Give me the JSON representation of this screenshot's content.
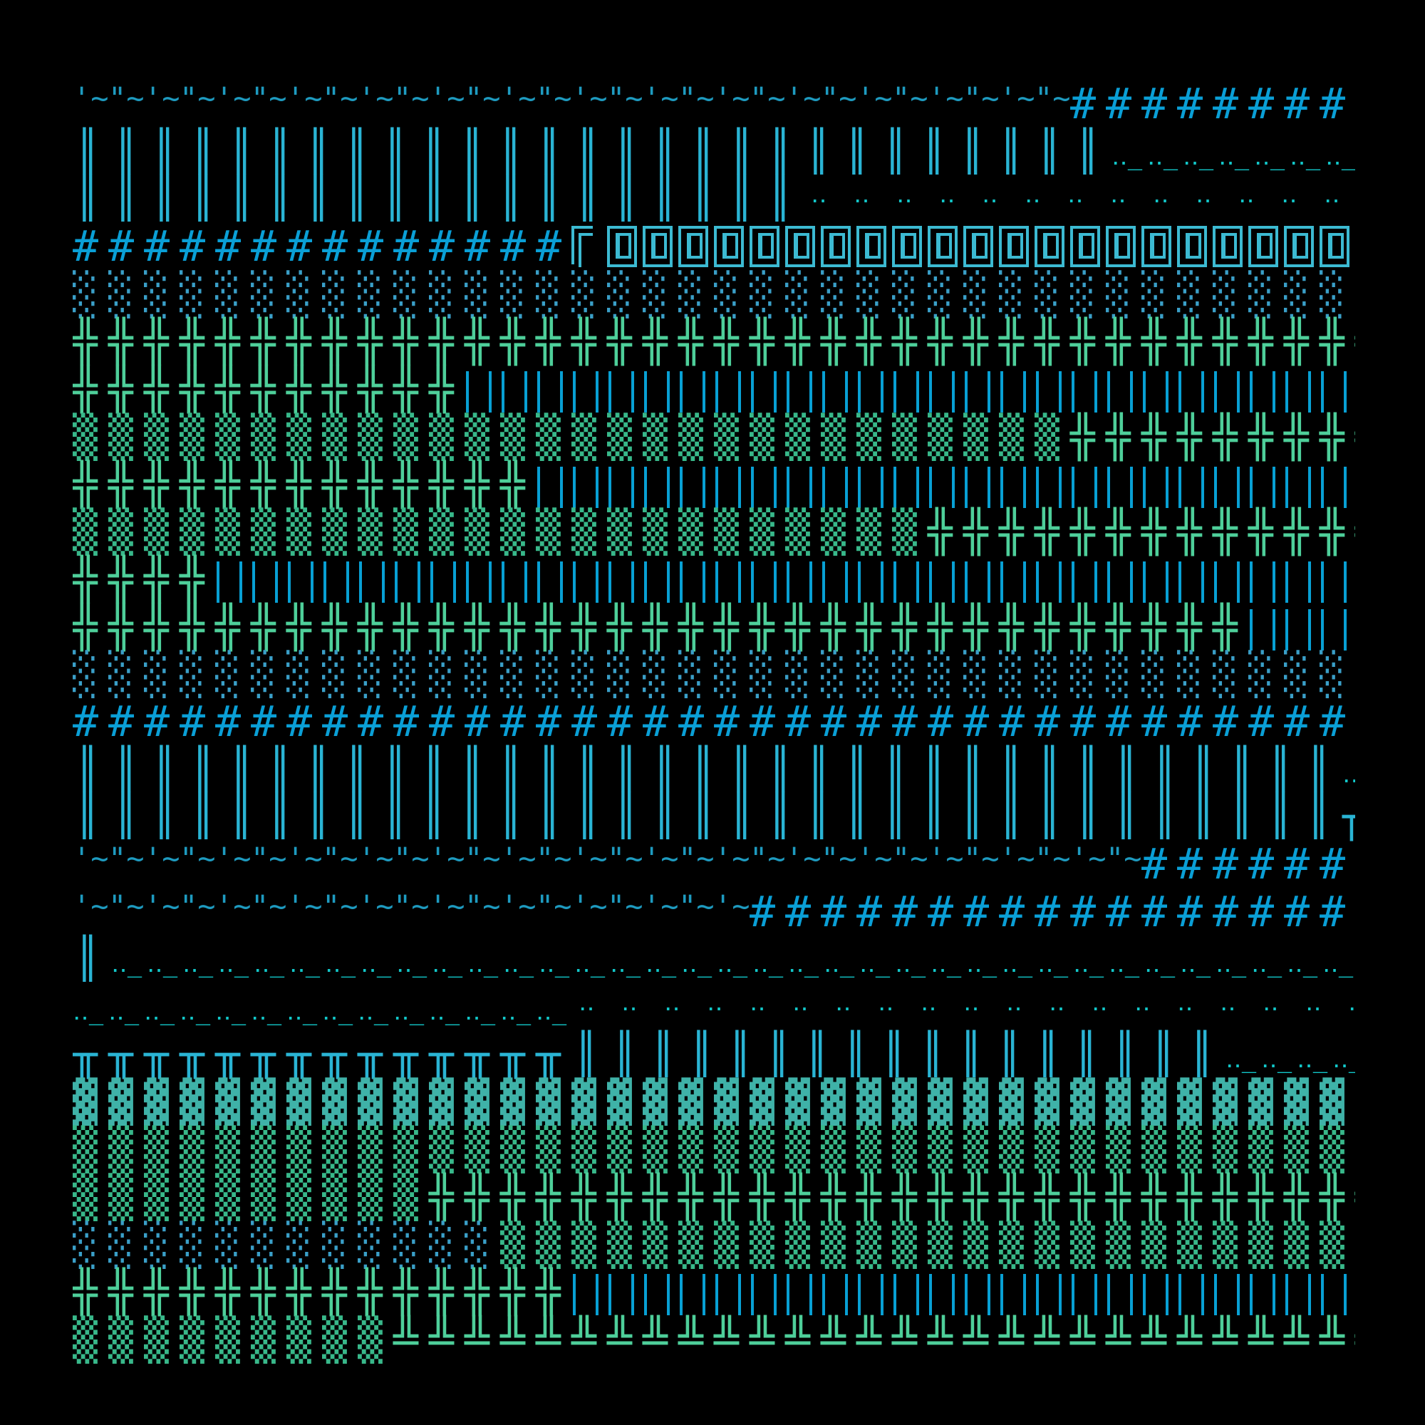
{
  "background": "#000000",
  "palette": {
    "blue": "#0a9fd6",
    "cyan": "#12c6c8",
    "green": "#4ecf9a",
    "teal": "#3fb2a8"
  },
  "rows": [
    {
      "segments": [
        {
          "glyph": "tilde",
          "count": 28
        },
        {
          "glyph": "hash"
        }
      ]
    },
    {
      "segments": [
        {
          "glyph": "dbar",
          "count": 27
        },
        {
          "glyph": "dotline"
        }
      ]
    },
    {
      "segments": [
        {
          "glyph": "dbar",
          "count": 19
        },
        {
          "glyph": "dots"
        }
      ]
    },
    {
      "segments": [
        {
          "glyph": "hash",
          "count": 14
        },
        {
          "glyph": "corner",
          "count": 1
        },
        {
          "glyph": "frame"
        }
      ]
    },
    {
      "segments": [
        {
          "glyph": "light"
        }
      ]
    },
    {
      "segments": [
        {
          "glyph": "cross"
        }
      ]
    },
    {
      "segments": [
        {
          "glyph": "cross",
          "count": 11
        },
        {
          "glyph": "bars"
        }
      ]
    },
    {
      "segments": [
        {
          "glyph": "medium",
          "count": 28
        },
        {
          "glyph": "cross"
        }
      ]
    },
    {
      "segments": [
        {
          "glyph": "cross",
          "count": 13
        },
        {
          "glyph": "bars"
        }
      ]
    },
    {
      "segments": [
        {
          "glyph": "medium",
          "count": 24
        },
        {
          "glyph": "cross"
        }
      ]
    },
    {
      "segments": [
        {
          "glyph": "cross",
          "count": 4
        },
        {
          "glyph": "bars"
        }
      ]
    },
    {
      "segments": [
        {
          "glyph": "cross",
          "count": 33
        },
        {
          "glyph": "bars"
        }
      ]
    },
    {
      "segments": [
        {
          "glyph": "light"
        }
      ]
    },
    {
      "segments": [
        {
          "glyph": "hash"
        }
      ]
    },
    {
      "segments": [
        {
          "glyph": "dbar",
          "count": 33
        },
        {
          "glyph": "dotline"
        }
      ]
    },
    {
      "segments": [
        {
          "glyph": "dbar",
          "count": 33
        },
        {
          "glyph": "tee",
          "count": 1
        },
        {
          "glyph": "dotline"
        }
      ]
    },
    {
      "segments": [
        {
          "glyph": "tilde",
          "count": 30
        },
        {
          "glyph": "hash"
        }
      ]
    },
    {
      "segments": [
        {
          "glyph": "tilde",
          "count": 19
        },
        {
          "glyph": "hash"
        }
      ]
    },
    {
      "segments": [
        {
          "glyph": "dbar",
          "count": 1
        },
        {
          "glyph": "dotline"
        }
      ]
    },
    {
      "segments": [
        {
          "glyph": "dotline",
          "count": 14
        },
        {
          "glyph": "dots"
        }
      ]
    },
    {
      "segments": [
        {
          "glyph": "tee",
          "count": 14
        },
        {
          "glyph": "dbar",
          "count": 17
        },
        {
          "glyph": "dotline"
        }
      ]
    },
    {
      "segments": [
        {
          "glyph": "dark"
        }
      ]
    },
    {
      "segments": [
        {
          "glyph": "medium"
        }
      ]
    },
    {
      "segments": [
        {
          "glyph": "medium",
          "count": 10
        },
        {
          "glyph": "cross"
        }
      ]
    },
    {
      "segments": [
        {
          "glyph": "light",
          "count": 12
        },
        {
          "glyph": "medium"
        }
      ]
    },
    {
      "segments": [
        {
          "glyph": "cross",
          "count": 14
        },
        {
          "glyph": "bars"
        }
      ]
    },
    {
      "segments": [
        {
          "glyph": "medium",
          "count": 9
        },
        {
          "glyph": "bottom"
        }
      ]
    }
  ]
}
